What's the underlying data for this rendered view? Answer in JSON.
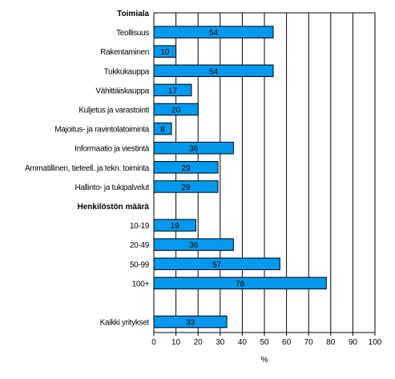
{
  "chart_data": {
    "type": "bar",
    "orientation": "horizontal",
    "rows": [
      {
        "kind": "heading",
        "label": "Toimiala"
      },
      {
        "kind": "bar",
        "label": "Teollisuus",
        "value": 54
      },
      {
        "kind": "bar",
        "label": "Rakentaminen",
        "value": 10
      },
      {
        "kind": "bar",
        "label": "Tukkukauppa",
        "value": 54
      },
      {
        "kind": "bar",
        "label": "Vähittäiskauppa",
        "value": 17
      },
      {
        "kind": "bar",
        "label": "Kuljetus ja varastointi",
        "value": 20
      },
      {
        "kind": "bar",
        "label": "Majoitus- ja ravintolatoiminta",
        "value": 8
      },
      {
        "kind": "bar",
        "label": "Informaatio ja viestintä",
        "value": 36
      },
      {
        "kind": "bar",
        "label": "Ammatillinen, tieteell. ja tekn. toiminta",
        "value": 29
      },
      {
        "kind": "bar",
        "label": "Hallinto- ja tukipalvelut",
        "value": 29
      },
      {
        "kind": "heading",
        "label": "Henkilöstön määrä"
      },
      {
        "kind": "bar",
        "label": "10-19",
        "value": 19
      },
      {
        "kind": "bar",
        "label": "20-49",
        "value": 36
      },
      {
        "kind": "bar",
        "label": "50-99",
        "value": 57
      },
      {
        "kind": "bar",
        "label": "100+",
        "value": 78
      },
      {
        "kind": "spacer",
        "label": ""
      },
      {
        "kind": "bar",
        "label": "Kaikki yritykset",
        "value": 33
      }
    ],
    "xlim": [
      0,
      100
    ],
    "xticks": [
      0,
      10,
      20,
      30,
      40,
      50,
      60,
      70,
      80,
      90,
      100
    ],
    "xlabel": "%",
    "grid": "vertical",
    "bar_color": "#0099ee",
    "bar_edge_color": "#000000",
    "data_labels": "inside-bar"
  }
}
